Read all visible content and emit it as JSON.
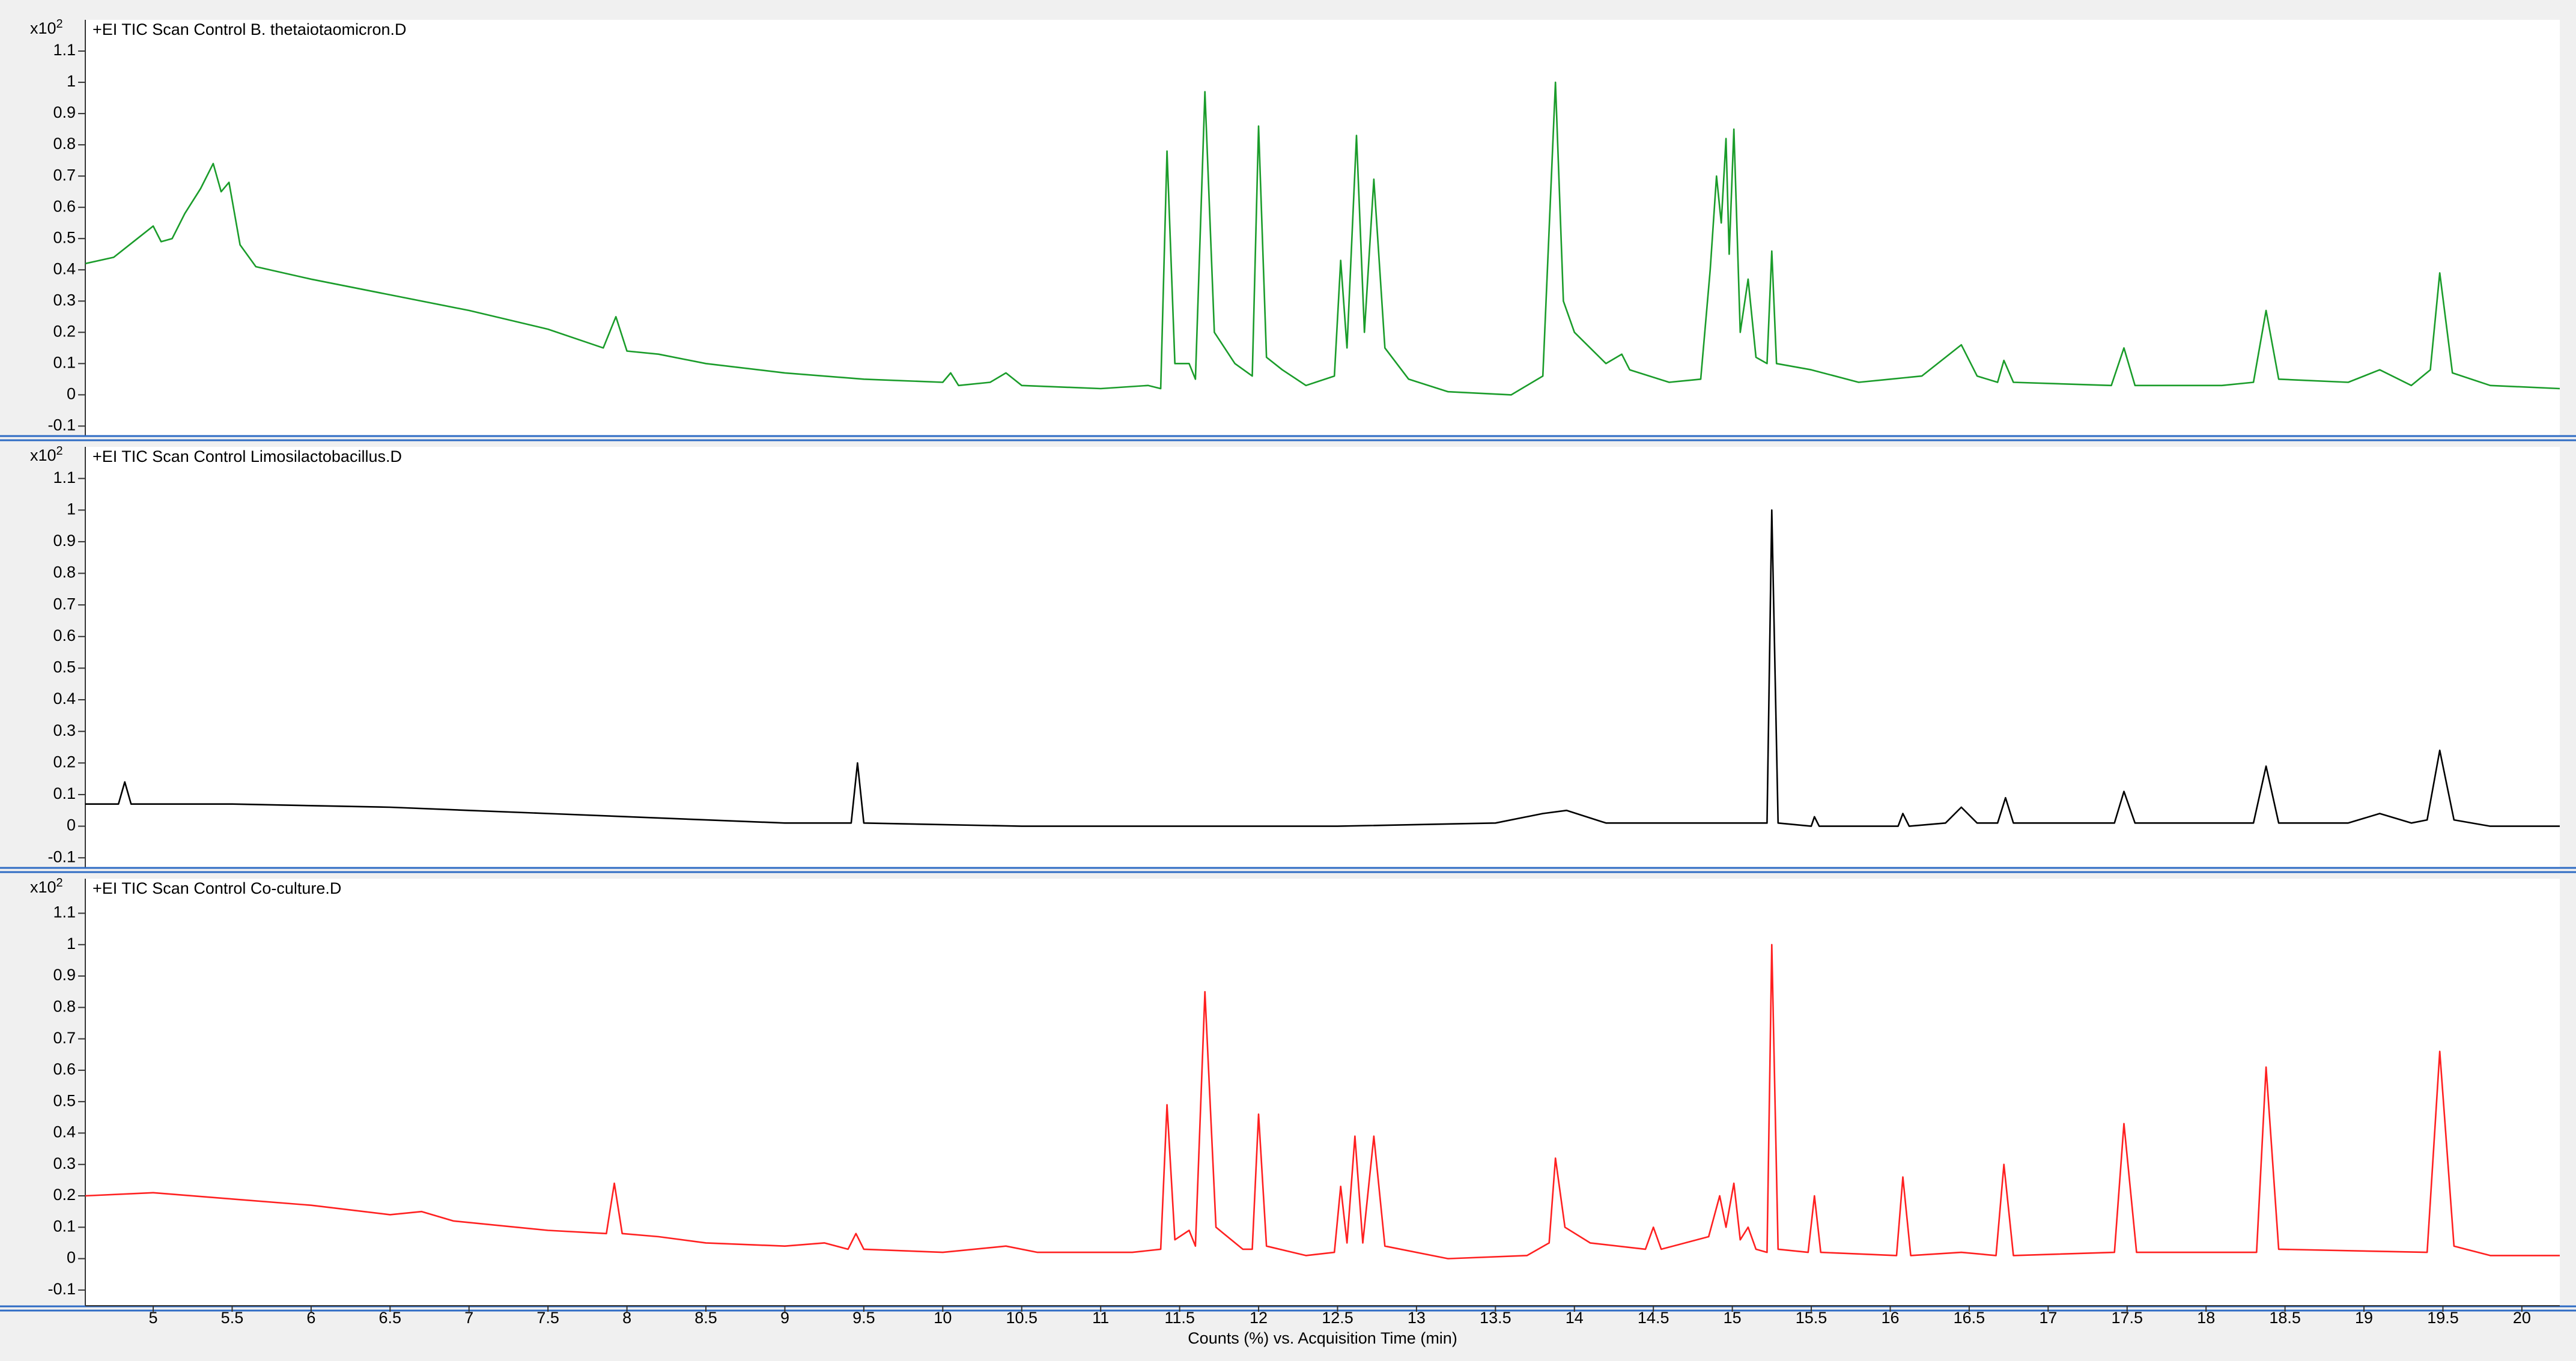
{
  "chart_data": [
    {
      "type": "line",
      "title": "+EI TIC Scan Control B. thetaiotaomicron.D",
      "y_scale_label": "x10",
      "y_scale_exponent": "2",
      "color": "#1a9c2a",
      "ylim": [
        -0.13,
        1.2
      ],
      "yticks": [
        -0.1,
        0,
        0.1,
        0.2,
        0.3,
        0.4,
        0.5,
        0.6,
        0.7,
        0.8,
        0.9,
        1,
        1.1
      ],
      "xlim": [
        4.57,
        20.24
      ],
      "x": [
        4.57,
        4.75,
        4.9,
        5.0,
        5.05,
        5.12,
        5.2,
        5.3,
        5.38,
        5.43,
        5.48,
        5.55,
        5.65,
        6.0,
        6.5,
        7.0,
        7.5,
        7.85,
        7.93,
        8.0,
        8.2,
        8.5,
        9.0,
        9.5,
        10.0,
        10.05,
        10.1,
        10.3,
        10.4,
        10.5,
        11.0,
        11.3,
        11.38,
        11.42,
        11.47,
        11.56,
        11.6,
        11.66,
        11.72,
        11.85,
        11.96,
        12.0,
        12.05,
        12.15,
        12.3,
        12.48,
        12.52,
        12.56,
        12.62,
        12.67,
        12.73,
        12.8,
        12.95,
        13.2,
        13.6,
        13.8,
        13.88,
        13.93,
        14.0,
        14.2,
        14.3,
        14.35,
        14.6,
        14.8,
        14.86,
        14.9,
        14.93,
        14.96,
        14.98,
        15.01,
        15.05,
        15.1,
        15.15,
        15.22,
        15.25,
        15.28,
        15.5,
        15.8,
        16.0,
        16.2,
        16.45,
        16.55,
        16.68,
        16.72,
        16.78,
        17.4,
        17.48,
        17.55,
        18.1,
        18.3,
        18.38,
        18.46,
        18.9,
        19.1,
        19.3,
        19.42,
        19.48,
        19.56,
        19.8,
        20.24
      ],
      "values": [
        0.42,
        0.44,
        0.5,
        0.54,
        0.49,
        0.5,
        0.58,
        0.66,
        0.74,
        0.65,
        0.68,
        0.48,
        0.41,
        0.37,
        0.32,
        0.27,
        0.21,
        0.15,
        0.25,
        0.14,
        0.13,
        0.1,
        0.07,
        0.05,
        0.04,
        0.07,
        0.03,
        0.04,
        0.07,
        0.03,
        0.02,
        0.03,
        0.02,
        0.78,
        0.1,
        0.1,
        0.05,
        0.97,
        0.2,
        0.1,
        0.06,
        0.86,
        0.12,
        0.08,
        0.03,
        0.06,
        0.43,
        0.15,
        0.83,
        0.2,
        0.69,
        0.15,
        0.05,
        0.01,
        0.0,
        0.06,
        1.0,
        0.3,
        0.2,
        0.1,
        0.13,
        0.08,
        0.04,
        0.05,
        0.4,
        0.7,
        0.55,
        0.82,
        0.45,
        0.85,
        0.2,
        0.37,
        0.12,
        0.1,
        0.46,
        0.1,
        0.08,
        0.04,
        0.05,
        0.06,
        0.16,
        0.06,
        0.04,
        0.11,
        0.04,
        0.03,
        0.15,
        0.03,
        0.03,
        0.04,
        0.27,
        0.05,
        0.04,
        0.08,
        0.03,
        0.08,
        0.39,
        0.07,
        0.03,
        0.02
      ]
    },
    {
      "type": "line",
      "title": "+EI TIC Scan Control Limosilactobacillus.D",
      "y_scale_label": "x10",
      "y_scale_exponent": "2",
      "color": "#000000",
      "ylim": [
        -0.13,
        1.2
      ],
      "yticks": [
        -0.1,
        0,
        0.1,
        0.2,
        0.3,
        0.4,
        0.5,
        0.6,
        0.7,
        0.8,
        0.9,
        1,
        1.1
      ],
      "xlim": [
        4.57,
        20.24
      ],
      "x": [
        4.57,
        4.78,
        4.82,
        4.86,
        5.5,
        6.5,
        7.0,
        7.5,
        8.5,
        9.0,
        9.42,
        9.46,
        9.5,
        10.5,
        12.5,
        13.5,
        13.8,
        13.95,
        14.2,
        14.5,
        15.0,
        15.22,
        15.25,
        15.29,
        15.5,
        15.52,
        15.55,
        16.05,
        16.08,
        16.12,
        16.35,
        16.45,
        16.55,
        16.68,
        16.73,
        16.78,
        17.42,
        17.48,
        17.55,
        18.3,
        18.38,
        18.46,
        18.9,
        19.1,
        19.3,
        19.4,
        19.48,
        19.57,
        19.8,
        20.24
      ],
      "values": [
        0.07,
        0.07,
        0.14,
        0.07,
        0.07,
        0.06,
        0.05,
        0.04,
        0.02,
        0.01,
        0.01,
        0.2,
        0.01,
        0.0,
        0.0,
        0.01,
        0.04,
        0.05,
        0.01,
        0.01,
        0.01,
        0.01,
        1.0,
        0.01,
        0.0,
        0.03,
        0.0,
        0.0,
        0.04,
        0.0,
        0.01,
        0.06,
        0.01,
        0.01,
        0.09,
        0.01,
        0.01,
        0.11,
        0.01,
        0.01,
        0.19,
        0.01,
        0.01,
        0.04,
        0.01,
        0.02,
        0.24,
        0.02,
        0.0,
        0.0
      ]
    },
    {
      "type": "line",
      "title": "+EI TIC Scan Control Co-culture.D",
      "y_scale_label": "x10",
      "y_scale_exponent": "2",
      "color": "#ff2020",
      "ylim": [
        -0.15,
        1.21
      ],
      "yticks": [
        -0.1,
        0,
        0.1,
        0.2,
        0.3,
        0.4,
        0.5,
        0.6,
        0.7,
        0.8,
        0.9,
        1,
        1.1
      ],
      "xlim": [
        4.57,
        20.24
      ],
      "xticks": [
        5,
        5.5,
        6,
        6.5,
        7,
        7.5,
        8,
        8.5,
        9,
        9.5,
        10,
        10.5,
        11,
        11.5,
        12,
        12.5,
        13,
        13.5,
        14,
        14.5,
        15,
        15.5,
        16,
        16.5,
        17,
        17.5,
        18,
        18.5,
        19,
        19.5,
        20
      ],
      "x_label": "Counts (%) vs. Acquisition Time (min)",
      "x": [
        4.57,
        5.0,
        5.5,
        6.0,
        6.5,
        6.7,
        6.9,
        7.5,
        7.87,
        7.92,
        7.97,
        8.2,
        8.5,
        9.0,
        9.25,
        9.4,
        9.45,
        9.5,
        10.0,
        10.4,
        10.6,
        11.2,
        11.38,
        11.42,
        11.47,
        11.56,
        11.6,
        11.66,
        11.73,
        11.9,
        11.96,
        12.0,
        12.05,
        12.3,
        12.48,
        12.52,
        12.56,
        12.61,
        12.66,
        12.73,
        12.8,
        13.2,
        13.7,
        13.84,
        13.88,
        13.94,
        14.1,
        14.45,
        14.5,
        14.55,
        14.85,
        14.92,
        14.96,
        15.01,
        15.05,
        15.1,
        15.15,
        15.22,
        15.25,
        15.29,
        15.48,
        15.52,
        15.56,
        16.04,
        16.08,
        16.13,
        16.45,
        16.67,
        16.72,
        16.78,
        17.42,
        17.48,
        17.56,
        18.32,
        18.38,
        18.46,
        19.4,
        19.48,
        19.57,
        19.8,
        20.24
      ],
      "values": [
        0.2,
        0.21,
        0.19,
        0.17,
        0.14,
        0.15,
        0.12,
        0.09,
        0.08,
        0.24,
        0.08,
        0.07,
        0.05,
        0.04,
        0.05,
        0.03,
        0.08,
        0.03,
        0.02,
        0.04,
        0.02,
        0.02,
        0.03,
        0.49,
        0.06,
        0.09,
        0.04,
        0.85,
        0.1,
        0.03,
        0.03,
        0.46,
        0.04,
        0.01,
        0.02,
        0.23,
        0.05,
        0.39,
        0.05,
        0.39,
        0.04,
        0.0,
        0.01,
        0.05,
        0.32,
        0.1,
        0.05,
        0.03,
        0.1,
        0.03,
        0.07,
        0.2,
        0.1,
        0.24,
        0.06,
        0.1,
        0.03,
        0.02,
        1.0,
        0.03,
        0.02,
        0.2,
        0.02,
        0.01,
        0.26,
        0.01,
        0.02,
        0.01,
        0.3,
        0.01,
        0.02,
        0.43,
        0.02,
        0.02,
        0.61,
        0.03,
        0.02,
        0.66,
        0.04,
        0.01,
        0.01
      ]
    }
  ]
}
